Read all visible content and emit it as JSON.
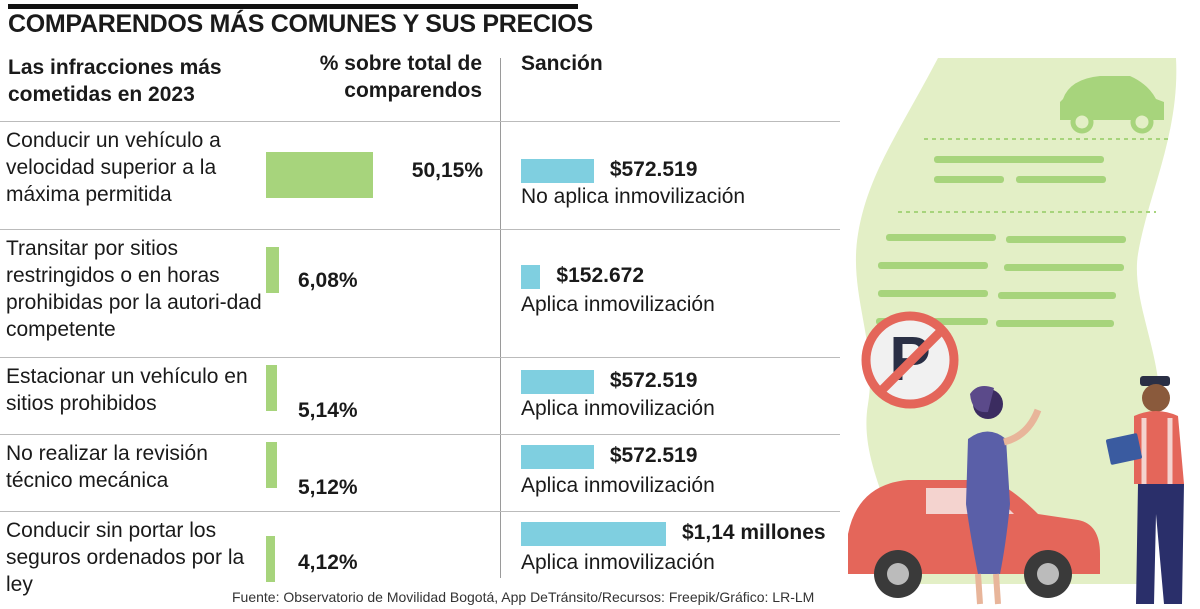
{
  "title": "COMPARENDOS MÁS COMUNES Y SUS PRECIOS",
  "headers": {
    "infraction": "Las infracciones más cometidas en 2023",
    "percent": "% sobre total de comparendos",
    "sanction": "Sanción"
  },
  "source": "Fuente: Observatorio de Movilidad Bogotá, App DeTránsito/Recursos: Freepik/Gráfico: LR-LM",
  "chart_data": {
    "type": "table",
    "title": "COMPARENDOS MÁS COMUNES Y SUS PRECIOS",
    "columns": [
      "Las infracciones más cometidas en 2023",
      "% sobre total de comparendos",
      "Sanción"
    ],
    "rows": [
      {
        "infraction": "Conducir un vehículo a velocidad superior a la máxima permitida",
        "percent": 50.15,
        "percent_label": "50,15%",
        "sanction": 572519,
        "sanction_label": "$572.519",
        "immobilization": "No aplica inmovilización"
      },
      {
        "infraction": "Transitar por sitios restringidos o en horas prohibidas por la autori-dad competente",
        "percent": 6.08,
        "percent_label": "6,08%",
        "sanction": 152672,
        "sanction_label": "$152.672",
        "immobilization": "Aplica inmovilización"
      },
      {
        "infraction": "Estacionar un vehículo en sitios prohibidos",
        "percent": 5.14,
        "percent_label": "5,14%",
        "sanction": 572519,
        "sanction_label": "$572.519",
        "immobilization": "Aplica inmovilización"
      },
      {
        "infraction": "No realizar la revisión técnico mecánica",
        "percent": 5.12,
        "percent_label": "5,12%",
        "sanction": 572519,
        "sanction_label": "$572.519",
        "immobilization": "Aplica inmovilización"
      },
      {
        "infraction": "Conducir sin portar los seguros ordenados por la ley",
        "percent": 4.12,
        "percent_label": "4,12%",
        "sanction": 1140000,
        "sanction_label": "$1,14 millones",
        "immobilization": "Aplica inmovilización"
      }
    ]
  },
  "colors": {
    "percent_bar": "#a7d47c",
    "sanction_bar": "#7fcfe0",
    "paper": "#e3efc6",
    "car": "#e4665a"
  },
  "illustration": {
    "icons": [
      "traffic-ticket-paper",
      "no-parking-sign",
      "car-icon",
      "woman-figure",
      "traffic-officer-figure"
    ]
  }
}
